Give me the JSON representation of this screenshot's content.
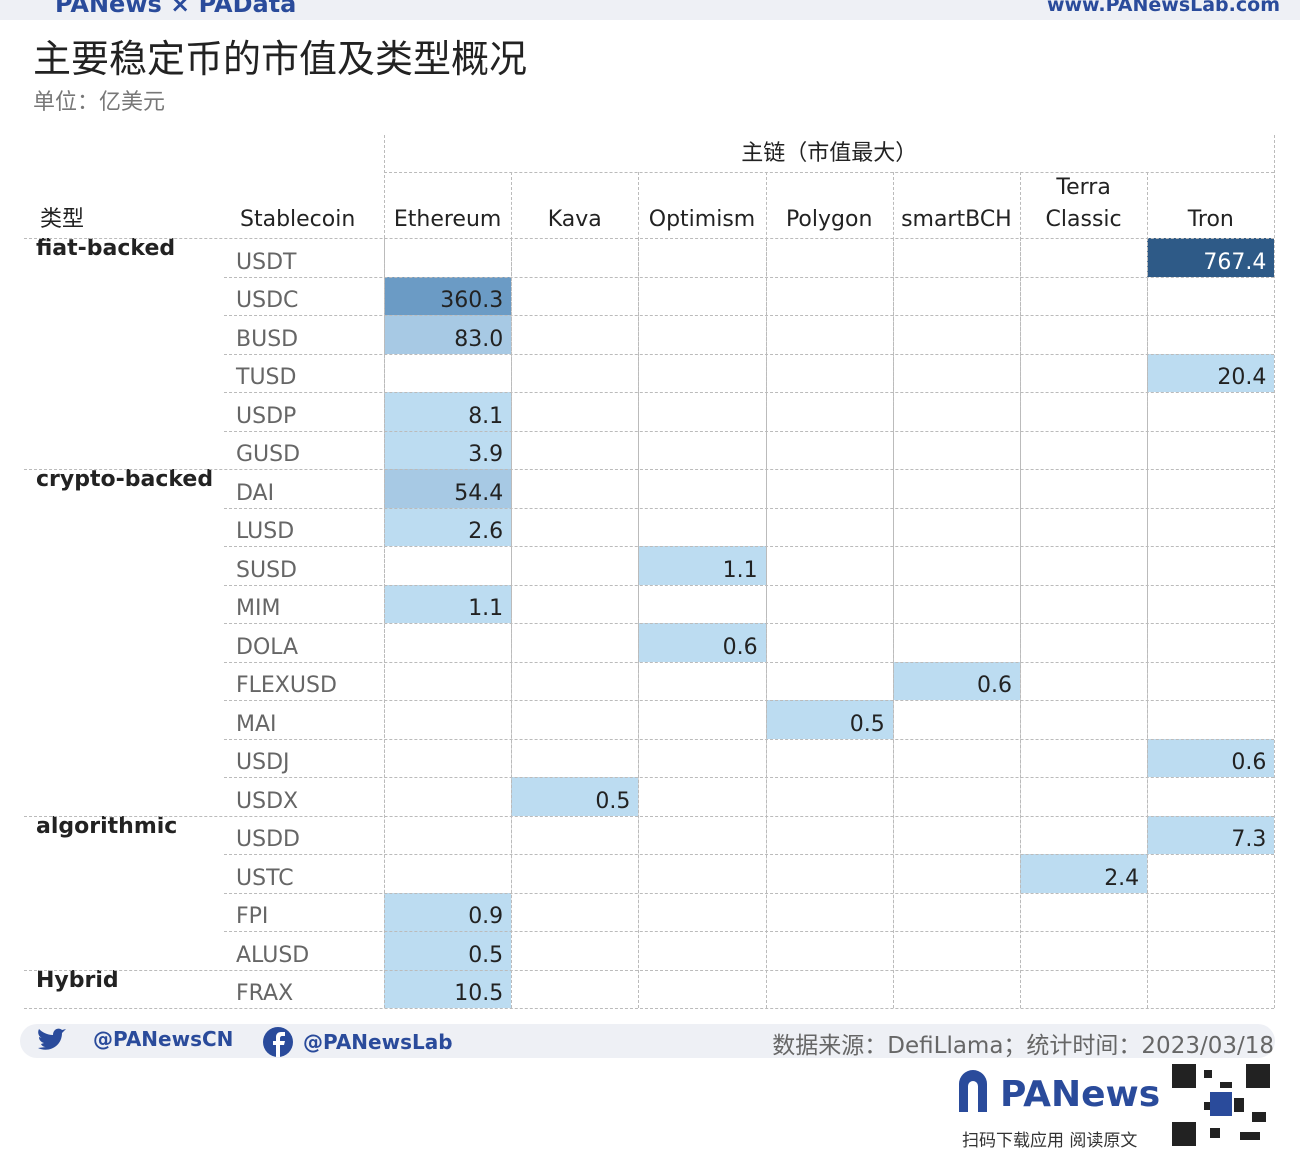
{
  "header": {
    "brand": "PANews × PAData",
    "site": "www.PANewsLab.com",
    "title": "主要稳定币的市值及类型概况",
    "subtitle": "单位：亿美元"
  },
  "table": {
    "group_header": "主链（市值最大）",
    "columns": [
      "类型",
      "Stablecoin",
      "Ethereum",
      "Kava",
      "Optimism",
      "Polygon",
      "smartBCH",
      "Terra Classic",
      "Tron"
    ],
    "rows": [
      [
        "fiat-backed",
        "USDT",
        null,
        null,
        null,
        null,
        null,
        null,
        "767.4"
      ],
      [
        null,
        "USDC",
        "360.3",
        null,
        null,
        null,
        null,
        null,
        null
      ],
      [
        null,
        "BUSD",
        "83.0",
        null,
        null,
        null,
        null,
        null,
        null
      ],
      [
        null,
        "TUSD",
        null,
        null,
        null,
        null,
        null,
        null,
        "20.4"
      ],
      [
        null,
        "USDP",
        "8.1",
        null,
        null,
        null,
        null,
        null,
        null
      ],
      [
        null,
        "GUSD",
        "3.9",
        null,
        null,
        null,
        null,
        null,
        null
      ],
      [
        "crypto-backed",
        "DAI",
        "54.4",
        null,
        null,
        null,
        null,
        null,
        null
      ],
      [
        null,
        "LUSD",
        "2.6",
        null,
        null,
        null,
        null,
        null,
        null
      ],
      [
        null,
        "SUSD",
        null,
        null,
        "1.1",
        null,
        null,
        null,
        null
      ],
      [
        null,
        "MIM",
        "1.1",
        null,
        null,
        null,
        null,
        null,
        null
      ],
      [
        null,
        "DOLA",
        null,
        null,
        "0.6",
        null,
        null,
        null,
        null
      ],
      [
        null,
        "FLEXUSD",
        null,
        null,
        null,
        null,
        "0.6",
        null,
        null
      ],
      [
        null,
        "MAI",
        null,
        null,
        null,
        "0.5",
        null,
        null,
        null
      ],
      [
        null,
        "USDJ",
        null,
        null,
        null,
        null,
        null,
        null,
        "0.6"
      ],
      [
        null,
        "USDX",
        null,
        "0.5",
        null,
        null,
        null,
        null,
        null
      ],
      [
        "algorithmic",
        "USDD",
        null,
        null,
        null,
        null,
        null,
        null,
        "7.3"
      ],
      [
        null,
        "USTC",
        null,
        null,
        null,
        null,
        null,
        "2.4",
        null
      ],
      [
        null,
        "FPI",
        "0.9",
        null,
        null,
        null,
        null,
        null,
        null
      ],
      [
        null,
        "ALUSD",
        "0.5",
        null,
        null,
        null,
        null,
        null,
        null
      ],
      [
        "Hybrid",
        "FRAX",
        "10.5",
        null,
        null,
        null,
        null,
        null,
        null
      ]
    ]
  },
  "footer": {
    "twitter": "@PANewsCN",
    "facebook": "@PANewsLab",
    "source": "数据来源：DefiLlama；统计时间：2023/03/18",
    "logo": "PANews",
    "qr_caption": "扫码下载应用 阅读原文"
  }
}
